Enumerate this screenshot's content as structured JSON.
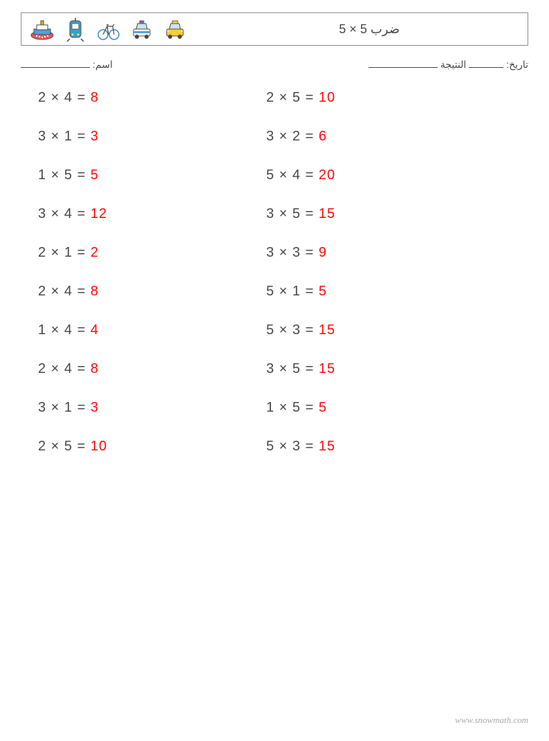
{
  "header": {
    "title": "ضرب 5 × 5",
    "icons": [
      "ship-icon",
      "tram-icon",
      "bicycle-icon",
      "police-car-icon",
      "taxi-icon"
    ]
  },
  "meta": {
    "date_label": "تاريخ:",
    "score_label": "النتيجة",
    "name_label": "اسم:"
  },
  "columns": [
    [
      {
        "a": 2,
        "b": 4,
        "ans": 8
      },
      {
        "a": 3,
        "b": 1,
        "ans": 3
      },
      {
        "a": 1,
        "b": 5,
        "ans": 5
      },
      {
        "a": 3,
        "b": 4,
        "ans": 12
      },
      {
        "a": 2,
        "b": 1,
        "ans": 2
      },
      {
        "a": 2,
        "b": 4,
        "ans": 8
      },
      {
        "a": 1,
        "b": 4,
        "ans": 4
      },
      {
        "a": 2,
        "b": 4,
        "ans": 8
      },
      {
        "a": 3,
        "b": 1,
        "ans": 3
      },
      {
        "a": 2,
        "b": 5,
        "ans": 10
      }
    ],
    [
      {
        "a": 2,
        "b": 5,
        "ans": 10
      },
      {
        "a": 3,
        "b": 2,
        "ans": 6
      },
      {
        "a": 5,
        "b": 4,
        "ans": 20
      },
      {
        "a": 3,
        "b": 5,
        "ans": 15
      },
      {
        "a": 3,
        "b": 3,
        "ans": 9
      },
      {
        "a": 5,
        "b": 1,
        "ans": 5
      },
      {
        "a": 5,
        "b": 3,
        "ans": 15
      },
      {
        "a": 3,
        "b": 5,
        "ans": 15
      },
      {
        "a": 1,
        "b": 5,
        "ans": 5
      },
      {
        "a": 5,
        "b": 3,
        "ans": 15
      }
    ]
  ],
  "colors": {
    "text": "#444444",
    "answer": "#ff0000",
    "border": "#888888",
    "footer": "#aaaaaa"
  },
  "typography": {
    "problem_fontsize": 20,
    "title_fontsize": 18,
    "meta_fontsize": 14
  },
  "footer": {
    "text": "www.snowmath.com"
  }
}
